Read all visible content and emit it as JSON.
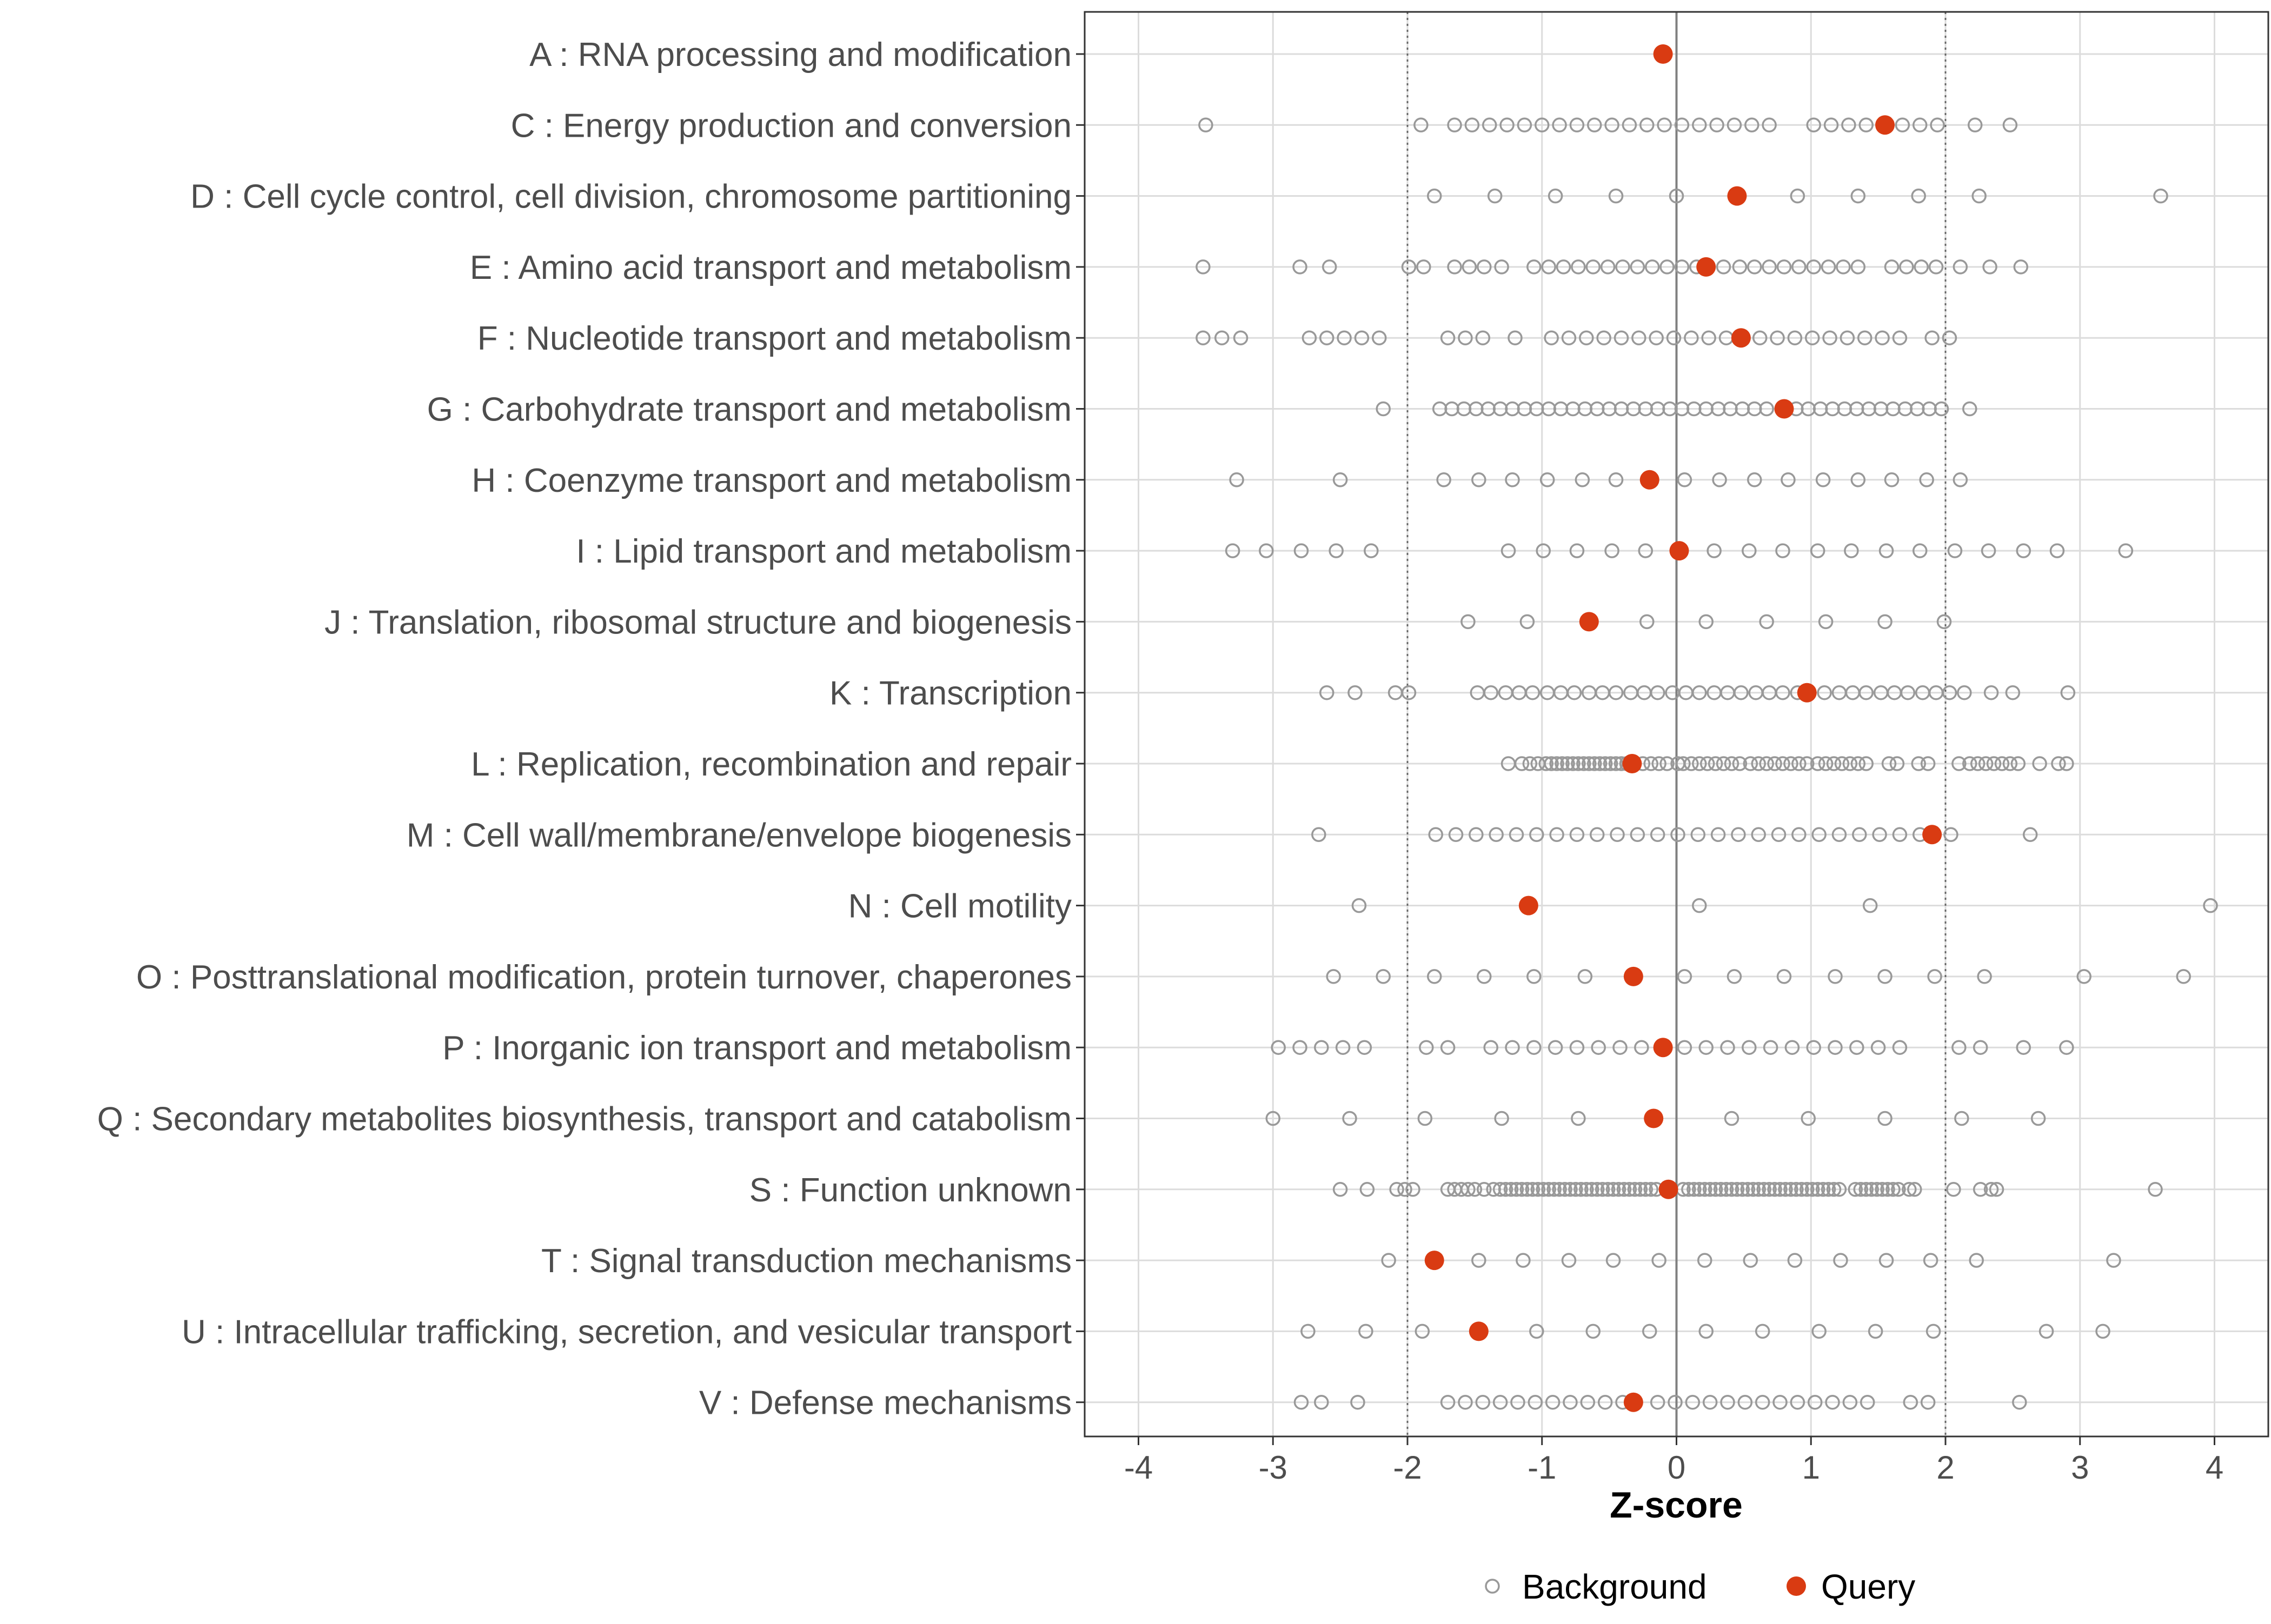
{
  "chart_data": {
    "type": "scatter",
    "xlabel": "Z-score",
    "xlim": [
      -4.4,
      4.4
    ],
    "xticks": [
      -4,
      -3,
      -2,
      -1,
      0,
      1,
      2,
      3,
      4
    ],
    "vlines": {
      "solid": [
        0
      ],
      "dotted": [
        -2,
        2
      ]
    },
    "legend": {
      "position": "bottom",
      "entries": [
        {
          "key": "background",
          "label": "Background"
        },
        {
          "key": "query",
          "label": "Query"
        }
      ]
    },
    "colors": {
      "query": "#d93b12",
      "background_stroke": "#999999",
      "grid": "#dcdcdc",
      "zero_line": "#7f7f7f",
      "dotted_line": "#666666",
      "axis": "#333333"
    },
    "categories": [
      {
        "label": "A : RNA processing and modification",
        "query": -0.1,
        "background": []
      },
      {
        "label": "C : Energy production and conversion",
        "query": 1.55,
        "background": [
          -3.5,
          -1.9,
          -1.65,
          -1.52,
          -1.39,
          -1.26,
          -1.13,
          -1.0,
          -0.87,
          -0.74,
          -0.61,
          -0.48,
          -0.35,
          -0.22,
          -0.09,
          0.04,
          0.17,
          0.3,
          0.43,
          0.56,
          0.69,
          1.02,
          1.15,
          1.28,
          1.41,
          1.68,
          1.81,
          1.94,
          2.22,
          2.48
        ]
      },
      {
        "label": "D : Cell cycle control, cell division, chromosome partitioning",
        "query": 0.45,
        "background": [
          -1.8,
          -1.35,
          -0.9,
          -0.45,
          0.0,
          0.9,
          1.35,
          1.8,
          2.25,
          3.6
        ]
      },
      {
        "label": "E : Amino acid transport and metabolism",
        "query": 0.22,
        "background": [
          -3.52,
          -2.8,
          -2.58,
          -1.99,
          -1.88,
          -1.65,
          -1.54,
          -1.43,
          -1.3,
          -1.06,
          -0.95,
          -0.84,
          -0.73,
          -0.62,
          -0.51,
          -0.4,
          -0.29,
          -0.18,
          -0.07,
          0.04,
          0.15,
          0.35,
          0.47,
          0.58,
          0.69,
          0.8,
          0.91,
          1.02,
          1.13,
          1.24,
          1.35,
          1.6,
          1.71,
          1.82,
          1.93,
          2.11,
          2.33,
          2.56
        ]
      },
      {
        "label": "F : Nucleotide transport and metabolism",
        "query": 0.48,
        "background": [
          -3.52,
          -3.38,
          -3.24,
          -2.73,
          -2.6,
          -2.47,
          -2.34,
          -2.21,
          -1.7,
          -1.57,
          -1.44,
          -1.2,
          -0.93,
          -0.8,
          -0.67,
          -0.54,
          -0.41,
          -0.28,
          -0.15,
          -0.02,
          0.11,
          0.24,
          0.37,
          0.62,
          0.75,
          0.88,
          1.01,
          1.14,
          1.27,
          1.4,
          1.53,
          1.66,
          1.9,
          2.03
        ]
      },
      {
        "label": "G : Carbohydrate transport and metabolism",
        "query": 0.8,
        "background": [
          -2.18,
          -1.76,
          -1.67,
          -1.58,
          -1.49,
          -1.4,
          -1.31,
          -1.22,
          -1.13,
          -1.04,
          -0.95,
          -0.86,
          -0.77,
          -0.68,
          -0.59,
          -0.5,
          -0.41,
          -0.32,
          -0.23,
          -0.14,
          -0.05,
          0.04,
          0.13,
          0.22,
          0.31,
          0.4,
          0.49,
          0.58,
          0.67,
          0.89,
          0.98,
          1.07,
          1.16,
          1.25,
          1.34,
          1.43,
          1.52,
          1.61,
          1.7,
          1.79,
          1.88,
          1.97,
          2.18
        ]
      },
      {
        "label": "H : Coenzyme transport and metabolism",
        "query": -0.2,
        "background": [
          -3.27,
          -2.5,
          -1.73,
          -1.47,
          -1.22,
          -0.96,
          -0.7,
          -0.45,
          0.06,
          0.32,
          0.58,
          0.83,
          1.09,
          1.35,
          1.6,
          1.86,
          2.11
        ]
      },
      {
        "label": "I : Lipid transport and metabolism",
        "query": 0.02,
        "background": [
          -3.3,
          -3.05,
          -2.79,
          -2.53,
          -2.27,
          -1.25,
          -0.99,
          -0.74,
          -0.48,
          -0.23,
          0.28,
          0.54,
          0.79,
          1.05,
          1.3,
          1.56,
          1.81,
          2.07,
          2.32,
          2.58,
          2.83,
          3.34
        ]
      },
      {
        "label": "J : Translation, ribosomal structure and biogenesis",
        "query": -0.65,
        "background": [
          -1.55,
          -1.11,
          -0.22,
          0.22,
          0.67,
          1.11,
          1.55,
          1.99
        ]
      },
      {
        "label": "K : Transcription",
        "query": 0.97,
        "background": [
          -2.6,
          -2.39,
          -2.09,
          -1.99,
          -1.48,
          -1.38,
          -1.27,
          -1.17,
          -1.07,
          -0.96,
          -0.86,
          -0.76,
          -0.65,
          -0.55,
          -0.45,
          -0.34,
          -0.24,
          -0.14,
          -0.03,
          0.07,
          0.17,
          0.28,
          0.38,
          0.48,
          0.59,
          0.69,
          0.79,
          0.9,
          1.1,
          1.21,
          1.31,
          1.41,
          1.52,
          1.62,
          1.72,
          1.83,
          1.93,
          2.03,
          2.14,
          2.34,
          2.5,
          2.91
        ]
      },
      {
        "label": "L : Replication, recombination and repair",
        "query": -0.33,
        "background": [
          -1.25,
          -1.15,
          -1.09,
          -1.03,
          -0.97,
          -0.93,
          -0.89,
          -0.85,
          -0.81,
          -0.77,
          -0.73,
          -0.69,
          -0.65,
          -0.61,
          -0.57,
          -0.53,
          -0.49,
          -0.45,
          -0.41,
          -0.37,
          -0.25,
          -0.19,
          -0.13,
          -0.07,
          0.01,
          0.05,
          0.11,
          0.17,
          0.23,
          0.29,
          0.35,
          0.41,
          0.47,
          0.55,
          0.61,
          0.67,
          0.73,
          0.79,
          0.85,
          0.91,
          0.97,
          1.05,
          1.11,
          1.17,
          1.23,
          1.29,
          1.35,
          1.41,
          1.58,
          1.64,
          1.8,
          1.87,
          2.1,
          2.18,
          2.24,
          2.3,
          2.36,
          2.42,
          2.48,
          2.54,
          2.7,
          2.84,
          2.9
        ]
      },
      {
        "label": "M : Cell wall/membrane/envelope biogenesis",
        "query": 1.9,
        "background": [
          -2.66,
          -1.79,
          -1.64,
          -1.49,
          -1.34,
          -1.19,
          -1.04,
          -0.89,
          -0.74,
          -0.59,
          -0.44,
          -0.29,
          -0.14,
          0.01,
          0.16,
          0.31,
          0.46,
          0.61,
          0.76,
          0.91,
          1.06,
          1.21,
          1.36,
          1.51,
          1.66,
          1.81,
          2.04,
          2.63
        ]
      },
      {
        "label": "N : Cell motility",
        "query": -1.1,
        "background": [
          -2.36,
          0.17,
          1.44,
          3.97
        ]
      },
      {
        "label": "O : Posttranslational modification, protein turnover, chaperones",
        "query": -0.32,
        "background": [
          -2.55,
          -2.18,
          -1.8,
          -1.43,
          -1.06,
          -0.68,
          0.06,
          0.43,
          0.8,
          1.18,
          1.55,
          1.92,
          2.29,
          3.03,
          3.77
        ]
      },
      {
        "label": "P : Inorganic ion transport and metabolism",
        "query": -0.1,
        "background": [
          -2.96,
          -2.8,
          -2.64,
          -2.48,
          -2.32,
          -1.86,
          -1.7,
          -1.38,
          -1.22,
          -1.06,
          -0.9,
          -0.74,
          -0.58,
          -0.42,
          -0.26,
          0.06,
          0.22,
          0.38,
          0.54,
          0.7,
          0.86,
          1.02,
          1.18,
          1.34,
          1.5,
          1.66,
          2.1,
          2.26,
          2.58,
          2.9
        ]
      },
      {
        "label": "Q : Secondary metabolites biosynthesis, transport and catabolism",
        "query": -0.17,
        "background": [
          -3.0,
          -2.43,
          -1.87,
          -1.3,
          -0.73,
          0.41,
          0.98,
          1.55,
          2.12,
          2.69
        ]
      },
      {
        "label": "S : Function unknown",
        "query": -0.06,
        "background": [
          -2.5,
          -2.3,
          -2.08,
          -2.02,
          -1.96,
          -1.7,
          -1.65,
          -1.6,
          -1.55,
          -1.5,
          -1.43,
          -1.36,
          -1.31,
          -1.27,
          -1.23,
          -1.19,
          -1.15,
          -1.11,
          -1.07,
          -1.03,
          -0.99,
          -0.95,
          -0.91,
          -0.87,
          -0.83,
          -0.79,
          -0.75,
          -0.71,
          -0.67,
          -0.63,
          -0.59,
          -0.55,
          -0.51,
          -0.47,
          -0.43,
          -0.39,
          -0.35,
          -0.31,
          -0.27,
          -0.23,
          -0.19,
          -0.15,
          0.05,
          0.09,
          0.13,
          0.17,
          0.21,
          0.25,
          0.29,
          0.33,
          0.37,
          0.41,
          0.45,
          0.49,
          0.53,
          0.57,
          0.61,
          0.65,
          0.69,
          0.73,
          0.77,
          0.81,
          0.85,
          0.89,
          0.93,
          0.97,
          1.01,
          1.05,
          1.09,
          1.13,
          1.17,
          1.21,
          1.33,
          1.37,
          1.41,
          1.45,
          1.49,
          1.53,
          1.57,
          1.61,
          1.65,
          1.73,
          1.77,
          2.06,
          2.26,
          2.34,
          2.38,
          3.56
        ]
      },
      {
        "label": "T : Signal transduction mechanisms",
        "query": -1.8,
        "background": [
          -2.14,
          -1.47,
          -1.14,
          -0.8,
          -0.47,
          -0.13,
          0.21,
          0.55,
          0.88,
          1.22,
          1.56,
          1.89,
          2.23,
          3.25
        ]
      },
      {
        "label": "U : Intracellular trafficking, secretion, and vesicular transport",
        "query": -1.47,
        "background": [
          -2.74,
          -2.31,
          -1.89,
          -1.04,
          -0.62,
          -0.2,
          0.22,
          0.64,
          1.06,
          1.48,
          1.91,
          2.75,
          3.17
        ]
      },
      {
        "label": "V : Defense mechanisms",
        "query": -0.32,
        "background": [
          -2.79,
          -2.64,
          -2.37,
          -1.7,
          -1.57,
          -1.44,
          -1.31,
          -1.18,
          -1.05,
          -0.92,
          -0.79,
          -0.66,
          -0.53,
          -0.4,
          -0.14,
          -0.01,
          0.12,
          0.25,
          0.38,
          0.51,
          0.64,
          0.77,
          0.9,
          1.03,
          1.16,
          1.29,
          1.42,
          1.74,
          1.87,
          2.55
        ]
      }
    ]
  }
}
